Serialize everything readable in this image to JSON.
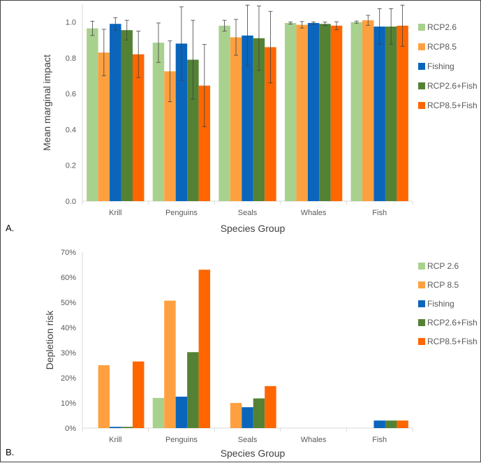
{
  "colors": {
    "RCP2.6": "#a9d18e",
    "RCP8.5": "#ffa040",
    "Fishing": "#0a65bb",
    "RCP2.6+Fish": "#548235",
    "RCP8.5+Fish": "#ff6600"
  },
  "chart_data": [
    {
      "panel_label": "A.",
      "type": "bar",
      "title": "",
      "xlabel": "Species Group",
      "ylabel": "Mean marginal impact",
      "categories": [
        "Krill",
        "Penguins",
        "Seals",
        "Whales",
        "Fish"
      ],
      "ylim": [
        0,
        1.1
      ],
      "yticks": [
        "0.0",
        "0.2",
        "0.4",
        "0.6",
        "0.8",
        "1.0"
      ],
      "legend_position": "right",
      "error_bars": true,
      "series": [
        {
          "name": "RCP2.6",
          "values": [
            0.965,
            0.885,
            0.98,
            0.995,
            1.0
          ],
          "errors": [
            0.04,
            0.11,
            0.03,
            0.006,
            0.006
          ]
        },
        {
          "name": "RCP8.5",
          "values": [
            0.83,
            0.725,
            0.915,
            0.985,
            1.01
          ],
          "errors": [
            0.13,
            0.17,
            0.1,
            0.018,
            0.028
          ]
        },
        {
          "name": "Fishing",
          "values": [
            0.99,
            0.88,
            0.925,
            0.995,
            0.975
          ],
          "errors": [
            0.035,
            0.205,
            0.17,
            0.006,
            0.1
          ]
        },
        {
          "name": "RCP2.6+Fish",
          "values": [
            0.955,
            0.79,
            0.91,
            0.99,
            0.975
          ],
          "errors": [
            0.055,
            0.22,
            0.18,
            0.01,
            0.1
          ]
        },
        {
          "name": "RCP8.5+Fish",
          "values": [
            0.82,
            0.645,
            0.86,
            0.98,
            0.98
          ],
          "errors": [
            0.13,
            0.23,
            0.2,
            0.022,
            0.115
          ]
        }
      ]
    },
    {
      "panel_label": "B.",
      "type": "bar",
      "title": "",
      "xlabel": "Species Group",
      "ylabel": "Depletion risk",
      "categories": [
        "Krill",
        "Penguins",
        "Seals",
        "Whales",
        "Fish"
      ],
      "ylim": [
        0,
        70
      ],
      "yticks": [
        "0%",
        "10%",
        "20%",
        "30%",
        "40%",
        "50%",
        "60%",
        "70%"
      ],
      "legend_position": "right",
      "error_bars": false,
      "series": [
        {
          "name": "RCP 2.6",
          "values": [
            0,
            12,
            0,
            0,
            0
          ]
        },
        {
          "name": "RCP 8.5",
          "values": [
            25,
            50.7,
            10,
            0,
            0
          ]
        },
        {
          "name": "Fishing",
          "values": [
            0.5,
            12.5,
            8.3,
            0,
            3
          ]
        },
        {
          "name": "RCP2.6+Fish",
          "values": [
            0.5,
            30.2,
            11.8,
            0,
            3
          ]
        },
        {
          "name": "RCP8.5+Fish",
          "values": [
            26.5,
            63,
            16.7,
            0,
            3
          ]
        }
      ]
    }
  ]
}
